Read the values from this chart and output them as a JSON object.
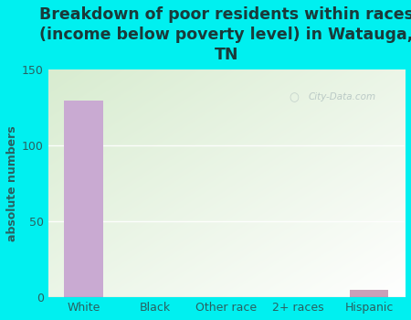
{
  "categories": [
    "White",
    "Black",
    "Other race",
    "2+ races",
    "Hispanic"
  ],
  "values": [
    130,
    0,
    0,
    0,
    5
  ],
  "bar_colors": [
    "#c9aad2",
    "#c9aad2",
    "#c9aad2",
    "#c9aad2",
    "#c9a0b8"
  ],
  "title": "Breakdown of poor residents within races\n(income below poverty level) in Watauga,\nTN",
  "ylabel": "absolute numbers",
  "ylim": [
    0,
    150
  ],
  "yticks": [
    0,
    50,
    100,
    150
  ],
  "bg_color": "#00f0f0",
  "plot_bg_topleft": "#d8ecd0",
  "plot_bg_bottomright": "#ffffff",
  "watermark": "City-Data.com",
  "title_fontsize": 12.5,
  "ylabel_fontsize": 9,
  "tick_fontsize": 9,
  "title_color": "#1a3a3a",
  "axis_color": "#2a6060",
  "grid_color": "#dddddd",
  "bar_width": 0.55
}
